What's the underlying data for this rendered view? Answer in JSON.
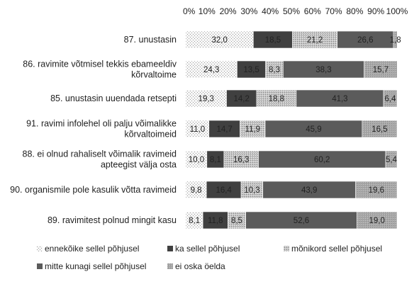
{
  "chart_data": {
    "type": "bar",
    "orientation": "horizontal",
    "stacked": "percent",
    "title": "",
    "xlabel": "",
    "ylabel": "",
    "xlim": [
      0,
      100
    ],
    "x_ticks": [
      "0%",
      "10%",
      "20%",
      "30%",
      "40%",
      "50%",
      "60%",
      "70%",
      "80%",
      "90%",
      "100%"
    ],
    "x_axis_position": "top",
    "grid": false,
    "legend_position": "bottom",
    "categories": [
      [
        "87. unustasin"
      ],
      [
        "86. ravimite võtmisel tekkis ebameeldiv",
        "kõrvaltoime"
      ],
      [
        "85. unustasin uuendada retsepti"
      ],
      [
        "91. ravimi infolehel oli palju võimalikke",
        "kõrvaltoimeid"
      ],
      [
        "88. ei olnud rahaliselt võimalik ravimeid",
        "apteegist välja osta"
      ],
      [
        "90. organismile pole kasulik võtta ravimeid"
      ],
      [
        "89. ravimitest polnud mingit kasu"
      ]
    ],
    "series": [
      {
        "name": "ennekõike sellel põhjusel",
        "values": [
          32.0,
          24.3,
          19.3,
          11.0,
          10.0,
          9.8,
          8.1
        ],
        "labels": [
          "32,0",
          "24,3",
          "19,3",
          "11,0",
          "10,0",
          "9,8",
          "8,1"
        ]
      },
      {
        "name": "ka sellel põhjusel",
        "values": [
          18.5,
          13.5,
          14.2,
          14.7,
          8.1,
          16.4,
          11.8
        ],
        "labels": [
          "18,5",
          "13,5",
          "14,2",
          "14,7",
          "8,1",
          "16,4",
          "11,8"
        ]
      },
      {
        "name": "mõnikord sellel põhjusel",
        "values": [
          21.2,
          8.3,
          18.8,
          11.9,
          16.3,
          10.3,
          8.5
        ],
        "labels": [
          "21,2",
          "8,3",
          "18,8",
          "11,9",
          "16,3",
          "10,3",
          "8,5"
        ]
      },
      {
        "name": "mitte kunagi sellel põhjusel",
        "values": [
          26.6,
          38.3,
          41.3,
          45.9,
          60.2,
          43.9,
          52.6
        ],
        "labels": [
          "26,6",
          "38,3",
          "41,3",
          "45,9",
          "60,2",
          "43,9",
          "52,6"
        ]
      },
      {
        "name": "ei oska öelda",
        "values": [
          1.8,
          15.7,
          6.4,
          16.5,
          5.4,
          19.6,
          19.0
        ],
        "labels": [
          "1,8",
          "15,7",
          "6,4",
          "16,5",
          "5,4",
          "19,6",
          "19,0"
        ]
      }
    ],
    "colors": [
      "#f4f4f4",
      "#404040",
      "#cfcfcf",
      "#5b5b5b",
      "#a6a6a6"
    ],
    "label_colors": [
      "#222222",
      "#222222",
      "#222222",
      "#222222",
      "#222222"
    ]
  }
}
